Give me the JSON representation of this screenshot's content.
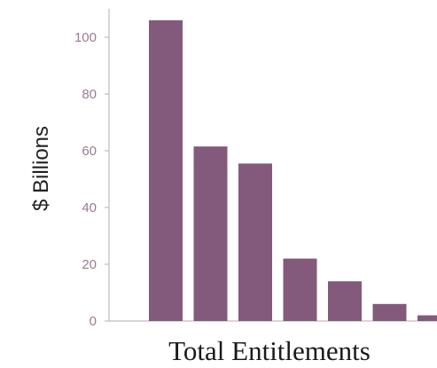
{
  "chart_data": {
    "type": "bar",
    "categories": [
      "",
      "",
      "",
      "",
      "",
      "",
      ""
    ],
    "values": [
      106,
      61.5,
      55.5,
      22,
      14,
      6,
      2
    ],
    "title": "",
    "xlabel": "Total Entitlements",
    "ylabel": "$ Billions",
    "ylim": [
      0,
      110
    ],
    "yticks": [
      "0",
      "20",
      "40",
      "60",
      "80",
      "100"
    ],
    "grid": false,
    "legend": "none",
    "colors": {
      "bar": "#835a7b",
      "tick_text": "#9a7a96",
      "axis": "#cfc5cc"
    }
  }
}
